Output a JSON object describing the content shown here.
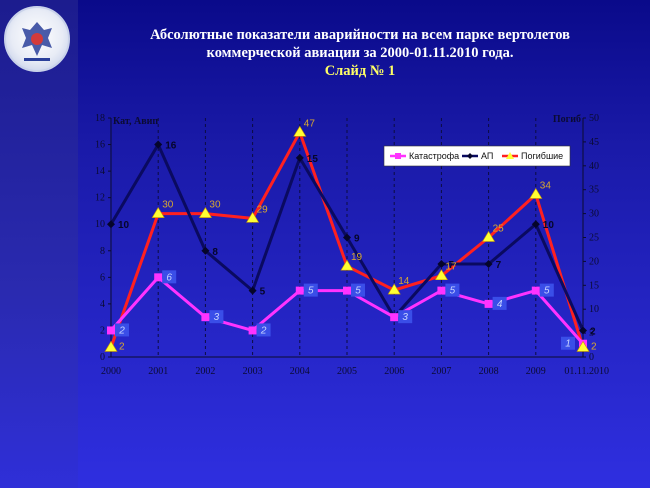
{
  "title": {
    "line1": "Абсолютные показатели аварийности на всем парке вертолетов",
    "line2": "коммерческой авиации за 2000-01.11.2010 года.",
    "line3": "Слайд № 1"
  },
  "chart_data": {
    "type": "line",
    "categories": [
      "2000",
      "2001",
      "2002",
      "2003",
      "2004",
      "2005",
      "2006",
      "2007",
      "2008",
      "2009",
      "01.11.2010"
    ],
    "y_left": {
      "label": "Кат, Авип",
      "ticks": [
        0,
        2,
        4,
        6,
        8,
        10,
        12,
        14,
        16,
        18
      ],
      "range": [
        0,
        18
      ]
    },
    "y_right": {
      "label": "Погиб",
      "ticks": [
        0,
        5,
        10,
        15,
        20,
        25,
        30,
        35,
        40,
        45,
        50
      ],
      "range": [
        0,
        50
      ]
    },
    "series": [
      {
        "name": "Катастрофа",
        "axis": "left",
        "color": "#ff33ff",
        "values": [
          2,
          6,
          3,
          2,
          5,
          5,
          3,
          5,
          4,
          5,
          1
        ]
      },
      {
        "name": "АП",
        "axis": "left",
        "color": "#0a0a60",
        "values": [
          10,
          16,
          8,
          5,
          15,
          9,
          3,
          7,
          7,
          10,
          2
        ]
      },
      {
        "name": "Погибшие",
        "axis": "right",
        "color": "#ff2020",
        "values": [
          2,
          30,
          30,
          29,
          47,
          19,
          14,
          17,
          25,
          34,
          2
        ]
      }
    ],
    "legend_position": "top-right",
    "grid": "vertical-dashed"
  }
}
